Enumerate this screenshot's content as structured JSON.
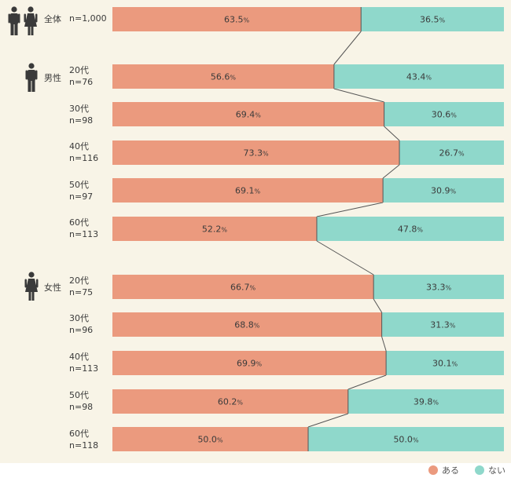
{
  "chart_data": {
    "type": "bar",
    "stacked": true,
    "orientation": "horizontal",
    "percent_suffix": "%",
    "colors": {
      "aru": "#eb9a7e",
      "nai": "#8fd8cb",
      "connector": "#555555"
    },
    "series": [
      {
        "name": "ある",
        "values": [
          63.5,
          56.6,
          69.4,
          73.3,
          69.1,
          52.2,
          66.7,
          68.8,
          69.9,
          60.2,
          50.0
        ]
      },
      {
        "name": "ない",
        "values": [
          36.5,
          43.4,
          30.6,
          26.7,
          30.9,
          47.8,
          33.3,
          31.3,
          30.1,
          39.8,
          50.0
        ]
      }
    ],
    "rows": [
      {
        "group": "全体",
        "category": "",
        "n": "n=1,000"
      },
      {
        "group": "男性",
        "category": "20代",
        "n": "n=76"
      },
      {
        "group": "",
        "category": "30代",
        "n": "n=98"
      },
      {
        "group": "",
        "category": "40代",
        "n": "n=116"
      },
      {
        "group": "",
        "category": "50代",
        "n": "n=97"
      },
      {
        "group": "",
        "category": "60代",
        "n": "n=113"
      },
      {
        "group": "女性",
        "category": "20代",
        "n": "n=75"
      },
      {
        "group": "",
        "category": "30代",
        "n": "n=96"
      },
      {
        "group": "",
        "category": "40代",
        "n": "n=113"
      },
      {
        "group": "",
        "category": "50代",
        "n": "n=98"
      },
      {
        "group": "",
        "category": "60代",
        "n": "n=118"
      }
    ],
    "xlim": [
      0,
      100
    ],
    "legend_position": "bottom-right"
  },
  "legend": {
    "aru_label": "ある",
    "nai_label": "ない"
  },
  "icons": {
    "overall": "man-and-woman-icon",
    "male": "man-icon",
    "female": "woman-icon"
  }
}
